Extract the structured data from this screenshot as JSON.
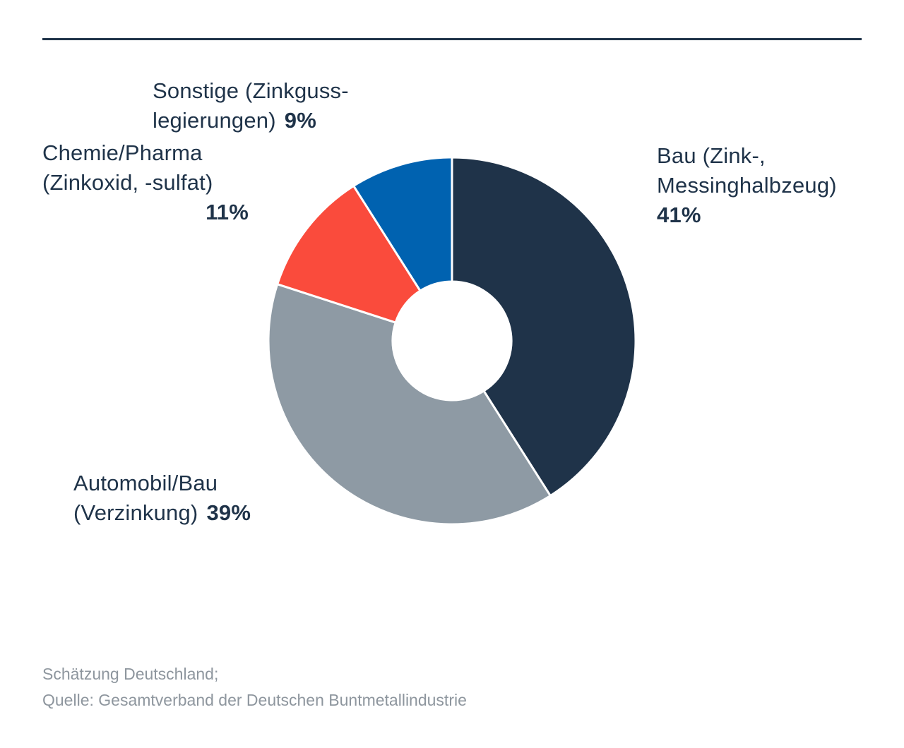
{
  "chart_data": {
    "type": "pie",
    "donut": true,
    "categories": [
      "Bau (Zink-, Messinghalbzeug)",
      "Automobil/Bau (Verzinkung)",
      "Chemie/Pharma (Zinkoxid, -sulfat)",
      "Sonstige (Zinkguss-legierungen)"
    ],
    "values": [
      41,
      39,
      11,
      9
    ],
    "unit": "%",
    "colors": [
      "#1f3349",
      "#8e9aa4",
      "#fa4b3c",
      "#0062b0"
    ],
    "title": "",
    "legend": "none",
    "labels": {
      "bau": {
        "line1": "Bau (Zink-,",
        "line2": "Messinghalbzeug)",
        "value": "41%"
      },
      "automobil": {
        "line1": "Automobil/Bau",
        "line2": "(Verzinkung)",
        "value": "39%"
      },
      "chemie": {
        "line1": "Chemie/Pharma",
        "line2": "(Zinkoxid, -sulfat)",
        "value": "11%"
      },
      "sonstige": {
        "line1": "Sonstige (Zinkguss-",
        "line2": "legierungen)",
        "value": "9%"
      }
    }
  },
  "footer": {
    "line1": "Schätzung Deutschland;",
    "line2": "Quelle: Gesamtverband der Deutschen Buntmetallindustrie"
  }
}
